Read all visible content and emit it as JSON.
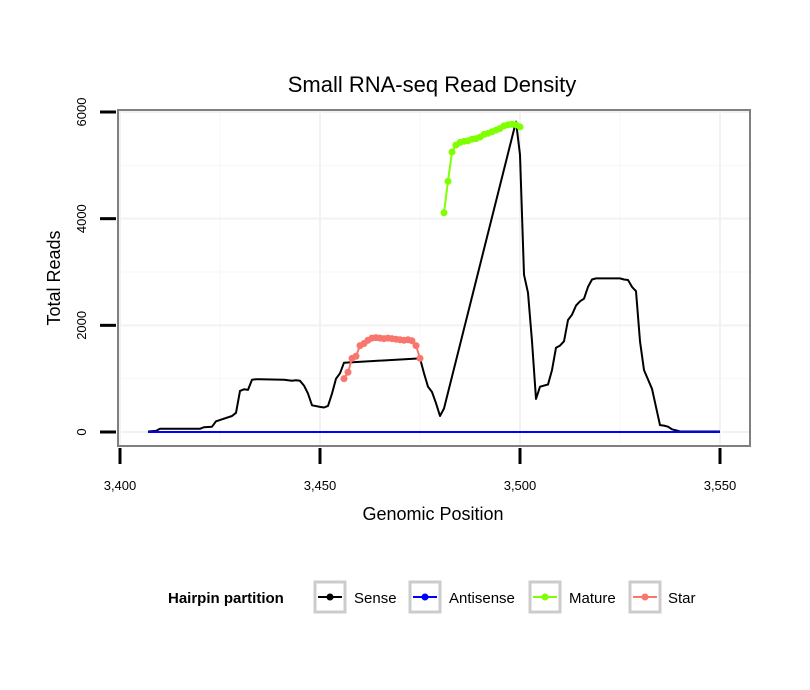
{
  "chart_data": {
    "type": "line",
    "title": "Small RNA-seq Read Density",
    "xlabel": "Genomic Position",
    "ylabel": "Total Reads",
    "xlim": [
      3400,
      3550
    ],
    "ylim": [
      0,
      6000
    ],
    "x_ticks": [
      3400,
      3450,
      3500,
      3550
    ],
    "x_tick_labels": [
      "3,400",
      "3,450",
      "3,500",
      "3,550"
    ],
    "y_ticks": [
      0,
      2000,
      4000,
      6000
    ],
    "y_tick_labels": [
      "0",
      "2000",
      "4000",
      "6000"
    ],
    "grid": true,
    "legend": {
      "title": "Hairpin partition",
      "position": "bottom",
      "entries": [
        "Sense",
        "Antisense",
        "Mature",
        "Star"
      ]
    },
    "series": [
      {
        "name": "Sense",
        "color": "#000000",
        "markers": false,
        "x": [
          3407,
          3409,
          3410,
          3420,
          3421,
          3423,
          3424,
          3428,
          3429,
          3430,
          3431,
          3432,
          3433,
          3434,
          3435,
          3441,
          3442,
          3443,
          3444,
          3445,
          3446,
          3447,
          3448,
          3450,
          3451,
          3452,
          3453,
          3454,
          3455,
          3456,
          3475,
          3476,
          3477,
          3478,
          3479,
          3480,
          3481,
          3499,
          3500,
          3501,
          3502,
          3503,
          3504,
          3505,
          3507,
          3508,
          3509,
          3510,
          3511,
          3512,
          3513,
          3514,
          3515,
          3516,
          3517,
          3518,
          3519,
          3525,
          3526,
          3527,
          3528,
          3529,
          3530,
          3531,
          3533,
          3535,
          3536,
          3537,
          3538,
          3539,
          3540,
          3541,
          3545,
          3550
        ],
        "y": [
          10,
          20,
          60,
          60,
          90,
          100,
          200,
          300,
          360,
          770,
          800,
          790,
          980,
          990,
          990,
          980,
          970,
          960,
          970,
          960,
          870,
          720,
          500,
          470,
          460,
          490,
          720,
          1000,
          1100,
          1300,
          1380,
          1100,
          850,
          750,
          540,
          300,
          440,
          5820,
          5200,
          2950,
          2610,
          1700,
          620,
          850,
          890,
          1160,
          1580,
          1620,
          1700,
          2100,
          2200,
          2370,
          2450,
          2500,
          2720,
          2860,
          2880,
          2880,
          2860,
          2850,
          2720,
          2640,
          1700,
          1160,
          810,
          130,
          120,
          100,
          50,
          30,
          10,
          10,
          10,
          10
        ]
      },
      {
        "name": "Antisense",
        "color": "#0000ff",
        "markers": false,
        "x": [
          3407,
          3550
        ],
        "y": [
          0,
          0
        ]
      },
      {
        "name": "Mature",
        "color": "#7fff00",
        "markers": true,
        "x": [
          3481,
          3482,
          3483,
          3484,
          3485,
          3486,
          3487,
          3488,
          3489,
          3490,
          3491,
          3492,
          3493,
          3494,
          3495,
          3496,
          3497,
          3498,
          3499,
          3500
        ],
        "y": [
          4110,
          4700,
          5250,
          5380,
          5430,
          5450,
          5460,
          5490,
          5500,
          5530,
          5580,
          5600,
          5630,
          5660,
          5690,
          5740,
          5760,
          5770,
          5760,
          5720
        ]
      },
      {
        "name": "Star",
        "color": "#f8766d",
        "markers": true,
        "x": [
          3456,
          3457,
          3458,
          3459,
          3460,
          3461,
          3462,
          3463,
          3464,
          3465,
          3466,
          3467,
          3468,
          3469,
          3470,
          3471,
          3472,
          3473,
          3474,
          3475
        ],
        "y": [
          1000,
          1120,
          1380,
          1420,
          1620,
          1660,
          1720,
          1760,
          1770,
          1760,
          1750,
          1760,
          1750,
          1740,
          1730,
          1720,
          1730,
          1710,
          1620,
          1380
        ]
      }
    ]
  }
}
